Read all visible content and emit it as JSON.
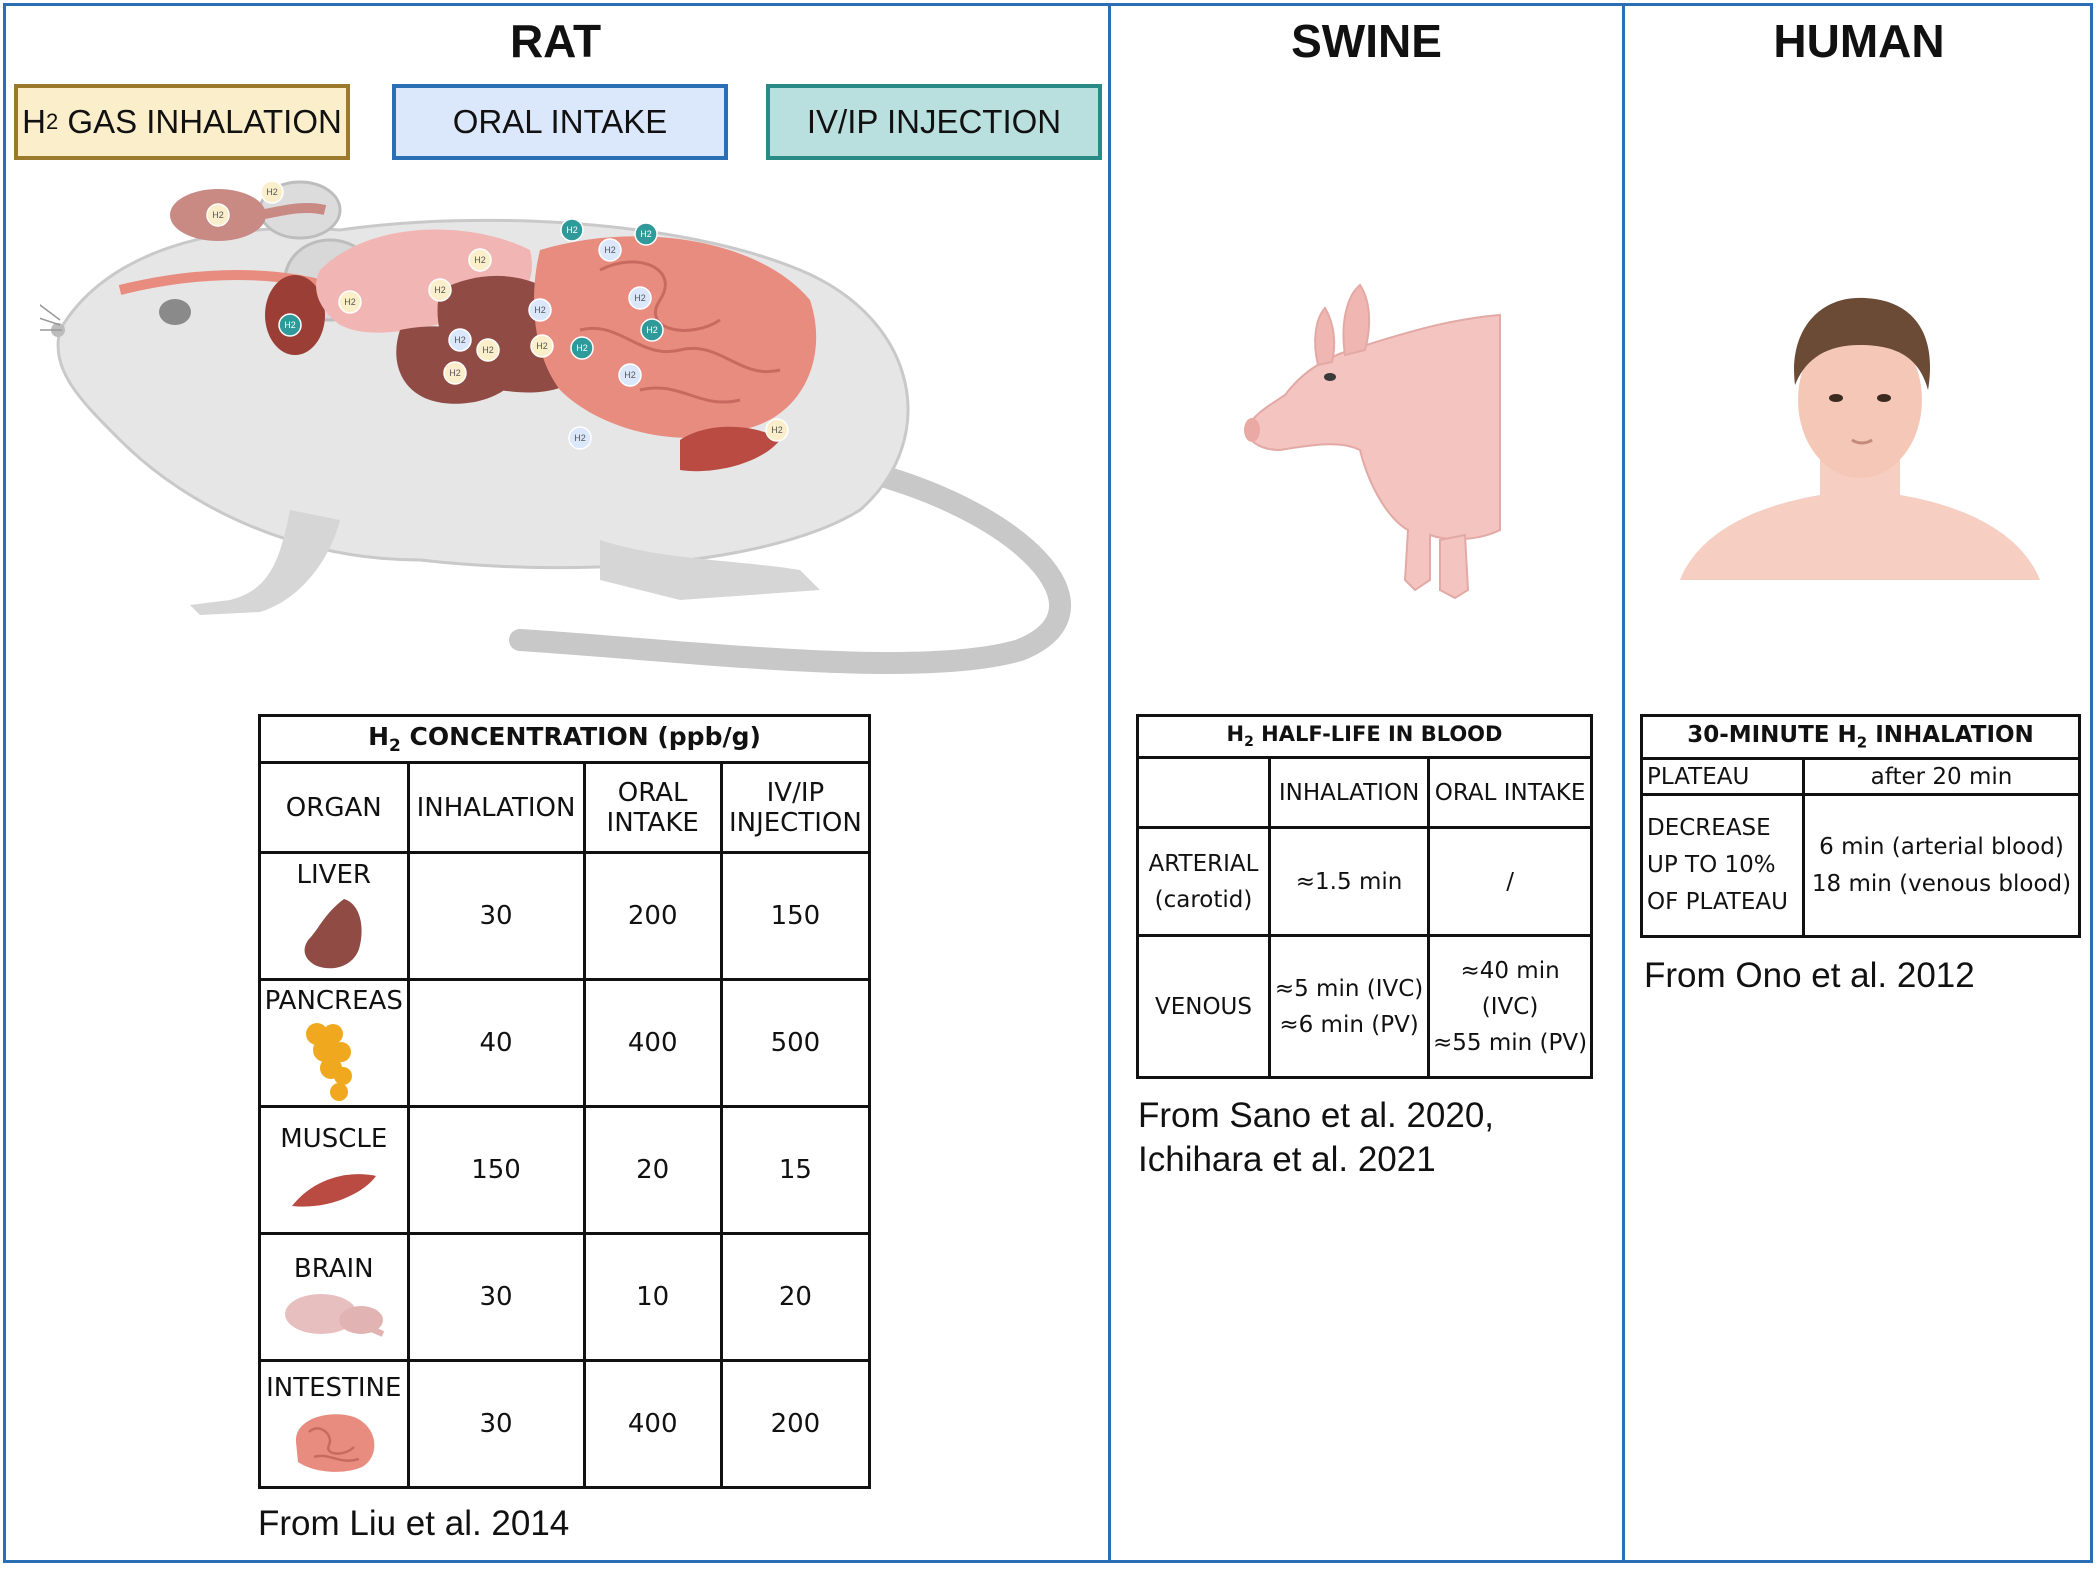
{
  "columns": {
    "rat": "RAT",
    "swine": "SWINE",
    "human": "HUMAN"
  },
  "methods": {
    "inhalation_prefix": "H",
    "inhalation_sub": "2",
    "inhalation_suffix": " GAS INHALATION",
    "oral": "ORAL INTAKE",
    "injection": "IV/IP INJECTION",
    "inhalation_color": "#fbefcb",
    "inhalation_border": "#9b7a2e",
    "oral_color": "#dbe8fb",
    "oral_border": "#2a6fb5",
    "injection_color": "#b9e0de",
    "injection_border": "#2a8a86"
  },
  "markers": {
    "label": "H2",
    "inhalation_color": "#fbefcb",
    "oral_color": "#dbe8fb",
    "injection_color": "#2e9a99"
  },
  "rat_table": {
    "title_prefix": "H",
    "title_sub": "2",
    "title_suffix": " CONCENTRATION (ppb/g)",
    "headers": {
      "organ": "ORGAN",
      "inhalation": "INHALATION",
      "oral_line1": "ORAL",
      "oral_line2": "INTAKE",
      "inj_line1": "IV/IP",
      "inj_line2": "INJECTION"
    },
    "rows": [
      {
        "organ": "LIVER",
        "icon": "liver-icon",
        "inhalation": "30",
        "oral": "200",
        "injection": "150"
      },
      {
        "organ": "PANCREAS",
        "icon": "pancreas-icon",
        "inhalation": "40",
        "oral": "400",
        "injection": "500"
      },
      {
        "organ": "MUSCLE",
        "icon": "muscle-icon",
        "inhalation": "150",
        "oral": "20",
        "injection": "15"
      },
      {
        "organ": "BRAIN",
        "icon": "brain-icon",
        "inhalation": "30",
        "oral": "10",
        "injection": "20"
      },
      {
        "organ": "INTESTINE",
        "icon": "intestine-icon",
        "inhalation": "30",
        "oral": "400",
        "injection": "200"
      }
    ],
    "citation": "From Liu et al. 2014"
  },
  "swine_table": {
    "title_prefix": "H",
    "title_sub": "2",
    "title_suffix": " HALF-LIFE IN BLOOD",
    "headers": {
      "inhalation": "INHALATION",
      "oral": "ORAL INTAKE"
    },
    "arterial": {
      "label_line1": "ARTERIAL",
      "label_line2": "(carotid)",
      "inhalation": "≈1.5 min",
      "oral": "/"
    },
    "venous": {
      "label": "VENOUS",
      "inhalation_line1": "≈5 min (IVC)",
      "inhalation_line2": "≈6 min (PV)",
      "oral_line1": "≈40 min (IVC)",
      "oral_line2": "≈55 min (PV)"
    },
    "citation_line1": "From Sano et al. 2020,",
    "citation_line2": "Ichihara et al. 2021"
  },
  "human_table": {
    "title_prefix": "30-MINUTE H",
    "title_sub": "2",
    "title_suffix": " INHALATION",
    "plateau_label": "PLATEAU",
    "plateau_value": "after 20 min",
    "decrease_line1": "DECREASE",
    "decrease_line2": "UP TO 10%",
    "decrease_line3": "OF PLATEAU",
    "decrease_value_line1": "6 min (arterial blood)",
    "decrease_value_line2": "18 min (venous blood)",
    "citation": "From Ono et al. 2012"
  },
  "colors": {
    "frame": "#2a6fb5",
    "rat_body": "#e6e6e6",
    "liver": "#8f4b44",
    "intestine": "#e98c80",
    "pig": "#f3c4c0",
    "skin": "#f6cfc2"
  }
}
